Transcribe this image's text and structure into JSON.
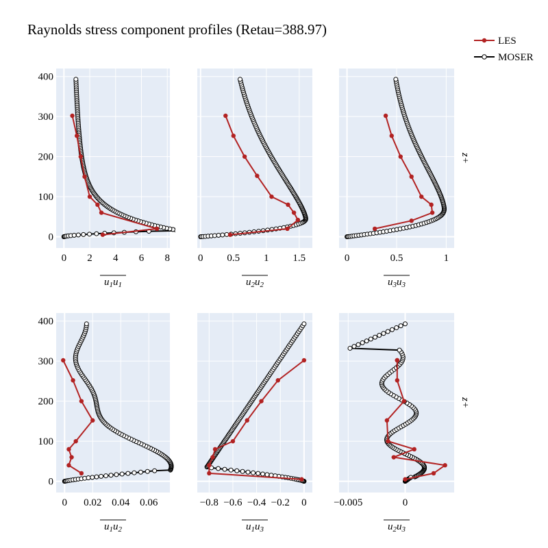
{
  "chart_data": {
    "type": "line",
    "title": "Raynolds stress component profiles (Retau=388.97)",
    "legend": {
      "position": "top-right",
      "entries": [
        {
          "name": "LES",
          "color": "#b22222",
          "marker": "filled-circle"
        },
        {
          "name": "MOSER",
          "color": "#000000",
          "marker": "open-circle"
        }
      ]
    },
    "y_axis": {
      "label": "z+",
      "ticks": [
        0,
        100,
        200,
        300,
        400
      ],
      "range": [
        -28,
        420
      ]
    },
    "background": "#e5ecf6",
    "grid": true,
    "panels": [
      {
        "xlabel_base": "u1u1",
        "xlabel_sub": [
          "1",
          "1"
        ],
        "xrange": [
          -0.6,
          8.2
        ],
        "xticks": [
          {
            "v": 0,
            "t": "0"
          },
          {
            "v": 2,
            "t": "2"
          },
          {
            "v": 4,
            "t": "4"
          },
          {
            "v": 6,
            "t": "6"
          },
          {
            "v": 8,
            "t": "8"
          }
        ],
        "les": {
          "x": [
            3.0,
            7.2,
            2.9,
            2.6,
            2.0,
            1.6,
            1.3,
            1.0,
            0.65
          ],
          "y": [
            5,
            20,
            60,
            80,
            100,
            150,
            200,
            252,
            302
          ]
        },
        "moser": {
          "kind": "u1u1",
          "peak": 7.55
        }
      },
      {
        "xlabel_sub": [
          "2",
          "2"
        ],
        "xrange": [
          -0.05,
          1.7
        ],
        "xticks": [
          {
            "v": 0,
            "t": "0"
          },
          {
            "v": 0.5,
            "t": "0.5"
          },
          {
            "v": 1,
            "t": "1"
          },
          {
            "v": 1.5,
            "t": "1.5"
          }
        ],
        "les": {
          "x": [
            0.45,
            1.32,
            1.48,
            1.42,
            1.33,
            1.08,
            0.86,
            0.67,
            0.5,
            0.38
          ],
          "y": [
            5,
            20,
            42,
            60,
            80,
            100,
            152,
            200,
            252,
            302
          ]
        },
        "moser": {
          "kind": "u2u2",
          "peak": 1.6
        }
      },
      {
        "xlabel_sub": [
          "3",
          "3"
        ],
        "xrange": [
          -0.08,
          1.08
        ],
        "xticks": [
          {
            "v": 0,
            "t": "0"
          },
          {
            "v": 0.5,
            "t": "0.5"
          },
          {
            "v": 1,
            "t": "1"
          }
        ],
        "les": {
          "x": [
            0.28,
            0.65,
            0.86,
            0.85,
            0.75,
            0.65,
            0.54,
            0.45,
            0.39
          ],
          "y": [
            20,
            40,
            60,
            80,
            100,
            150,
            200,
            252,
            302
          ]
        },
        "moser": {
          "kind": "u3u3",
          "peak": 0.98
        }
      },
      {
        "xlabel_sub": [
          "1",
          "2"
        ],
        "xrange": [
          -0.006,
          0.075
        ],
        "xticks": [
          {
            "v": 0,
            "t": "0"
          },
          {
            "v": 0.02,
            "t": "0.02"
          },
          {
            "v": 0.04,
            "t": "0.04"
          },
          {
            "v": 0.06,
            "t": "0.06"
          }
        ],
        "les": {
          "x": [
            0.012,
            0.003,
            0.005,
            0.003,
            0.008,
            0.02,
            0.012,
            0.006,
            -0.001
          ],
          "y": [
            20,
            40,
            60,
            80,
            100,
            152,
            200,
            252,
            302
          ]
        },
        "moser": {
          "kind": "u1u2"
        }
      },
      {
        "xlabel_sub": [
          "1",
          "3"
        ],
        "xrange": [
          -0.9,
          0.07
        ],
        "xticks": [
          {
            "v": -0.8,
            "t": "−0.8"
          },
          {
            "v": -0.6,
            "t": "−0.6"
          },
          {
            "v": -0.4,
            "t": "−0.4"
          },
          {
            "v": -0.2,
            "t": "−0.2"
          },
          {
            "v": 0,
            "t": "0"
          }
        ],
        "les": {
          "x": [
            -0.02,
            -0.8,
            -0.8,
            -0.77,
            -0.75,
            -0.6,
            -0.48,
            -0.36,
            -0.22,
            0.0
          ],
          "y": [
            5,
            20,
            40,
            60,
            80,
            100,
            152,
            200,
            252,
            302
          ]
        },
        "moser": {
          "kind": "u1u3"
        }
      },
      {
        "xlabel_sub": [
          "2",
          "3"
        ],
        "xrange": [
          -0.0058,
          0.0043
        ],
        "xticks": [
          {
            "v": -0.005,
            "t": "−0.005"
          },
          {
            "v": 0,
            "t": "0"
          }
        ],
        "les": {
          "x": [
            0.0,
            0.0025,
            0.0035,
            -0.001,
            0.0008,
            -0.0015,
            -0.0016,
            -0.0001,
            -0.0007,
            -0.0007,
            -0.0007,
            -0.0007
          ],
          "y": [
            5,
            20,
            40,
            60,
            80,
            100,
            152,
            200,
            252,
            302,
            302,
            302
          ]
        },
        "moser": {
          "kind": "u2u3"
        }
      }
    ]
  }
}
